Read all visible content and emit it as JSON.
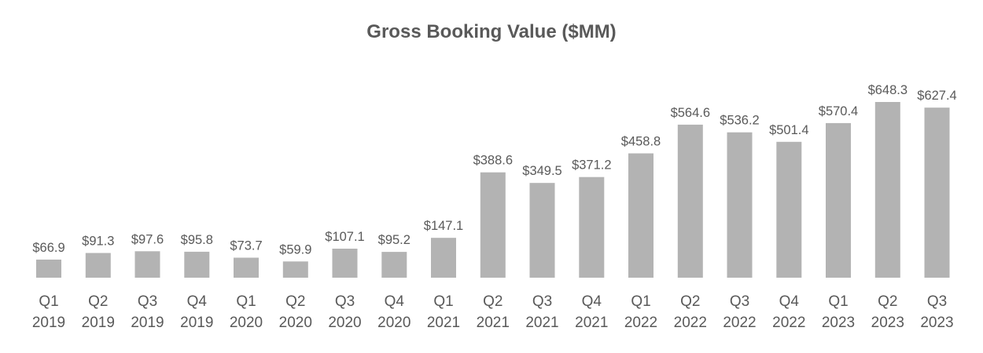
{
  "chart_data": {
    "type": "bar",
    "title": "Gross Booking Value ($MM)",
    "categories": [
      [
        "Q1",
        "2019"
      ],
      [
        "Q2",
        "2019"
      ],
      [
        "Q3",
        "2019"
      ],
      [
        "Q4",
        "2019"
      ],
      [
        "Q1",
        "2020"
      ],
      [
        "Q2",
        "2020"
      ],
      [
        "Q3",
        "2020"
      ],
      [
        "Q4",
        "2020"
      ],
      [
        "Q1",
        "2021"
      ],
      [
        "Q2",
        "2021"
      ],
      [
        "Q3",
        "2021"
      ],
      [
        "Q4",
        "2021"
      ],
      [
        "Q1",
        "2022"
      ],
      [
        "Q2",
        "2022"
      ],
      [
        "Q3",
        "2022"
      ],
      [
        "Q4",
        "2022"
      ],
      [
        "Q1",
        "2023"
      ],
      [
        "Q2",
        "2023"
      ],
      [
        "Q3",
        "2023"
      ]
    ],
    "values": [
      66.9,
      91.3,
      97.6,
      95.8,
      73.7,
      59.9,
      107.1,
      95.2,
      147.1,
      388.6,
      349.5,
      371.2,
      458.8,
      564.6,
      536.2,
      501.4,
      570.4,
      648.3,
      627.4
    ],
    "data_labels": [
      "$66.9",
      "$91.3",
      "$97.6",
      "$95.8",
      "$73.7",
      "$59.9",
      "$107.1",
      "$95.2",
      "$147.1",
      "$388.6",
      "$349.5",
      "$371.2",
      "$458.8",
      "$564.6",
      "$536.2",
      "$501.4",
      "$570.4",
      "$648.3",
      "$627.4"
    ],
    "xlabel": "",
    "ylabel": "",
    "ylim": [
      0,
      648.3
    ],
    "grid": false,
    "legend": "none",
    "bar_color": "#b3b3b3",
    "text_color": "#595959"
  }
}
